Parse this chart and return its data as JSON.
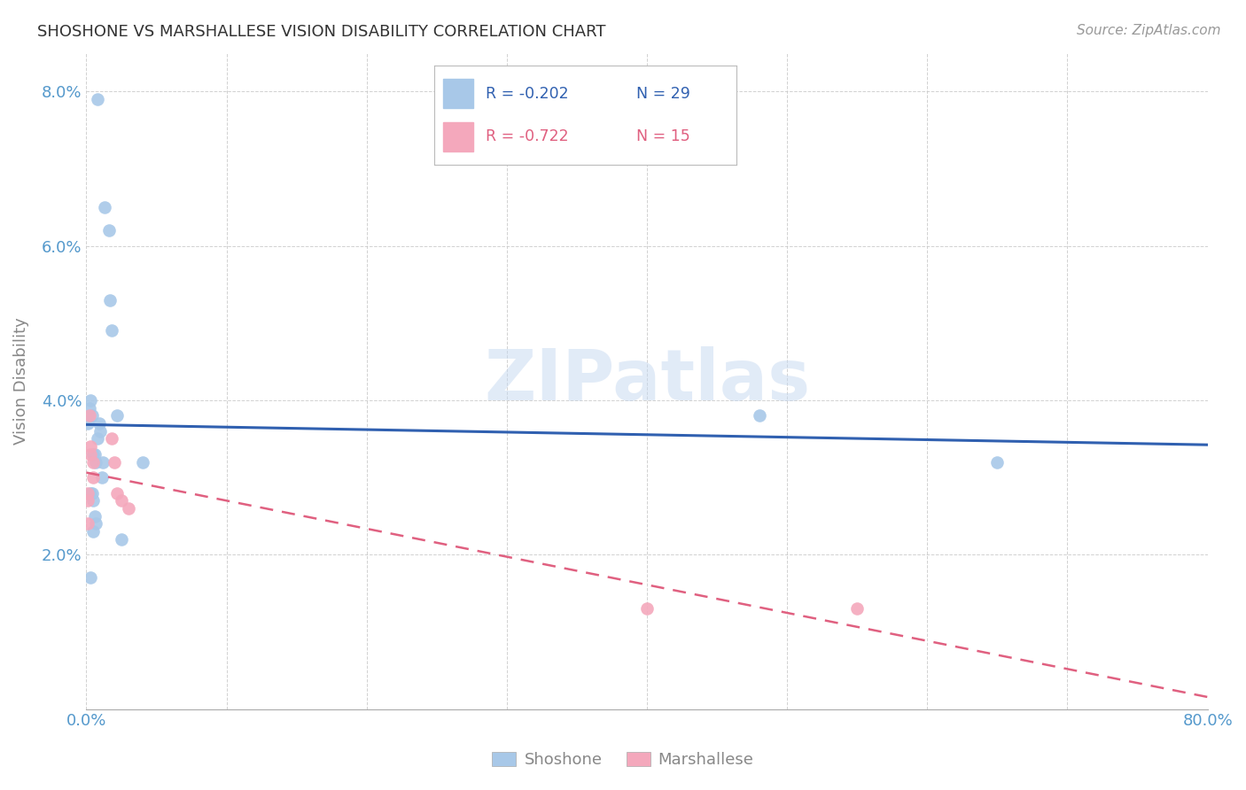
{
  "title": "SHOSHONE VS MARSHALLESE VISION DISABILITY CORRELATION CHART",
  "source": "Source: ZipAtlas.com",
  "ylabel": "Vision Disability",
  "watermark": "ZIPatlas",
  "xlim": [
    0.0,
    0.8
  ],
  "ylim": [
    0.0,
    0.085
  ],
  "xticks": [
    0.0,
    0.1,
    0.2,
    0.3,
    0.4,
    0.5,
    0.6,
    0.7,
    0.8
  ],
  "xtick_labels": [
    "0.0%",
    "",
    "",
    "",
    "",
    "",
    "",
    "",
    "80.0%"
  ],
  "yticks": [
    0.0,
    0.02,
    0.04,
    0.06,
    0.08
  ],
  "ytick_labels": [
    "",
    "2.0%",
    "4.0%",
    "6.0%",
    "8.0%"
  ],
  "shoshone_x": [
    0.008,
    0.013,
    0.016,
    0.017,
    0.001,
    0.002,
    0.003,
    0.004,
    0.005,
    0.006,
    0.007,
    0.003,
    0.004,
    0.005,
    0.006,
    0.007,
    0.008,
    0.009,
    0.01,
    0.011,
    0.012,
    0.018,
    0.022,
    0.025,
    0.04,
    0.003,
    0.005,
    0.65,
    0.48
  ],
  "shoshone_y": [
    0.079,
    0.065,
    0.062,
    0.053,
    0.037,
    0.039,
    0.04,
    0.038,
    0.033,
    0.033,
    0.032,
    0.028,
    0.028,
    0.027,
    0.025,
    0.024,
    0.035,
    0.037,
    0.036,
    0.03,
    0.032,
    0.049,
    0.038,
    0.022,
    0.032,
    0.017,
    0.023,
    0.032,
    0.038
  ],
  "marshallese_x": [
    0.002,
    0.003,
    0.003,
    0.005,
    0.005,
    0.018,
    0.02,
    0.022,
    0.025,
    0.03,
    0.001,
    0.001,
    0.001,
    0.4,
    0.55
  ],
  "marshallese_y": [
    0.038,
    0.034,
    0.033,
    0.032,
    0.03,
    0.035,
    0.032,
    0.028,
    0.027,
    0.026,
    0.028,
    0.027,
    0.024,
    0.013,
    0.013
  ],
  "shoshone_color": "#A8C8E8",
  "marshallese_color": "#F4A8BC",
  "shoshone_line_color": "#3060B0",
  "marshallese_line_color": "#E06080",
  "background_color": "#ffffff",
  "grid_color": "#cccccc",
  "title_color": "#333333",
  "axis_label_color": "#888888",
  "tick_label_color": "#5599CC",
  "legend_r_shoshone": "R = -0.202",
  "legend_n_shoshone": "N = 29",
  "legend_r_marshallese": "R = -0.722",
  "legend_n_marshallese": "N = 15",
  "bottom_label_shoshone": "Shoshone",
  "bottom_label_marshallese": "Marshallese"
}
